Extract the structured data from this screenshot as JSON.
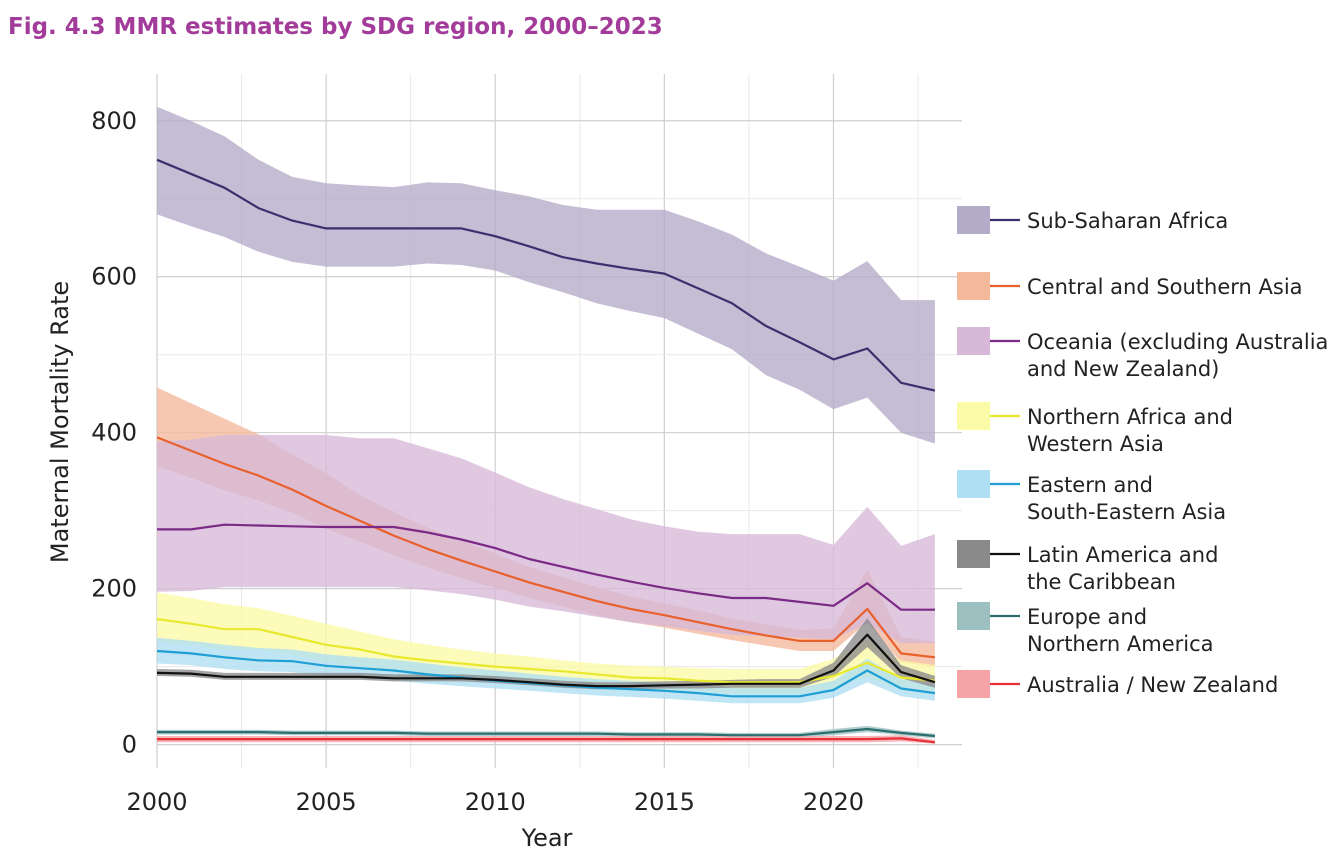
{
  "figure_title": "Fig. 4.3 MMR estimates by SDG region, 2000–2023",
  "chart_data": {
    "type": "line",
    "title": "Fig. 4.3 MMR estimates by SDG region, 2000–2023",
    "xlabel": "Year",
    "ylabel": "Maternal Mortality Rate",
    "xlim": [
      2000,
      2023.8
    ],
    "ylim": [
      -30,
      860
    ],
    "x_ticks": [
      2000,
      2005,
      2010,
      2015,
      2020
    ],
    "y_ticks": [
      0,
      200,
      400,
      600,
      800
    ],
    "grid": true,
    "legend_position": "right",
    "x": [
      2000,
      2001,
      2002,
      2003,
      2004,
      2005,
      2006,
      2007,
      2008,
      2009,
      2010,
      2011,
      2012,
      2013,
      2014,
      2015,
      2016,
      2017,
      2018,
      2019,
      2020,
      2021,
      2022,
      2023
    ],
    "series": [
      {
        "name": "Sub-Saharan Africa",
        "label_lines": [
          "Sub-Saharan Africa"
        ],
        "line_color": "#3c2f6e",
        "band_color": "#b4abc8",
        "values": [
          750,
          732,
          714,
          688,
          672,
          662,
          662,
          662,
          662,
          662,
          652,
          639,
          625,
          617,
          610,
          604,
          585,
          566,
          537,
          516,
          494,
          508,
          464,
          454
        ],
        "lower": [
          680,
          665,
          651,
          632,
          619,
          613,
          613,
          613,
          617,
          615,
          608,
          593,
          580,
          566,
          556,
          547,
          527,
          507,
          474,
          455,
          430,
          445,
          400,
          386
        ],
        "upper": [
          818,
          800,
          780,
          750,
          728,
          720,
          717,
          715,
          721,
          720,
          711,
          703,
          692,
          686,
          686,
          686,
          671,
          654,
          630,
          613,
          595,
          620,
          570,
          570
        ]
      },
      {
        "name": "Central and Southern Asia",
        "label_lines": [
          "Central and Southern Asia"
        ],
        "line_color": "#e8602c",
        "band_color": "#f4b89b",
        "values": [
          394,
          377,
          360,
          345,
          327,
          306,
          287,
          268,
          251,
          236,
          222,
          208,
          196,
          184,
          174,
          166,
          157,
          148,
          140,
          133,
          133,
          174,
          117,
          112
        ],
        "lower": [
          357,
          342,
          326,
          313,
          297,
          277,
          260,
          243,
          227,
          213,
          201,
          188,
          177,
          166,
          157,
          150,
          142,
          134,
          127,
          120,
          120,
          157,
          105,
          100
        ],
        "upper": [
          458,
          438,
          418,
          398,
          372,
          348,
          320,
          298,
          278,
          262,
          245,
          228,
          215,
          202,
          190,
          181,
          172,
          162,
          154,
          147,
          149,
          225,
          138,
          132
        ]
      },
      {
        "name": "Oceania (excluding Australia and New Zealand)",
        "label_lines": [
          "Oceania (excluding Australia",
          " and New Zealand)"
        ],
        "line_color": "#7b2a86",
        "band_color": "#d7b8d8",
        "values": [
          276,
          276,
          282,
          281,
          280,
          279,
          279,
          279,
          272,
          263,
          252,
          238,
          228,
          218,
          209,
          201,
          194,
          188,
          188,
          183,
          178,
          207,
          173,
          173
        ],
        "lower": [
          196,
          197,
          202,
          202,
          202,
          202,
          202,
          202,
          198,
          193,
          186,
          177,
          171,
          164,
          157,
          152,
          146,
          141,
          139,
          137,
          135,
          155,
          130,
          130
        ],
        "upper": [
          389,
          391,
          397,
          397,
          397,
          397,
          393,
          393,
          380,
          367,
          349,
          330,
          315,
          302,
          289,
          280,
          273,
          270,
          270,
          270,
          256,
          305,
          255,
          270
        ]
      },
      {
        "name": "Northern Africa and Western Asia",
        "label_lines": [
          "Northern Africa and",
          "Western Asia"
        ],
        "line_color": "#e8e82e",
        "band_color": "#fbfaa6",
        "values": [
          161,
          155,
          148,
          148,
          138,
          128,
          122,
          113,
          108,
          104,
          100,
          97,
          94,
          90,
          86,
          85,
          82,
          80,
          80,
          80,
          88,
          105,
          86,
          82
        ],
        "lower": [
          132,
          128,
          122,
          122,
          115,
          106,
          101,
          94,
          89,
          86,
          83,
          80,
          77,
          74,
          71,
          70,
          68,
          66,
          66,
          66,
          72,
          86,
          70,
          67
        ],
        "upper": [
          195,
          188,
          180,
          175,
          165,
          155,
          145,
          135,
          128,
          122,
          117,
          113,
          108,
          104,
          101,
          100,
          98,
          97,
          97,
          97,
          110,
          135,
          108,
          102
        ]
      },
      {
        "name": "Eastern and South-Eastern Asia",
        "label_lines": [
          "Eastern and",
          "South-Eastern Asia"
        ],
        "line_color": "#1f9fd4",
        "band_color": "#aedff3",
        "values": [
          120,
          117,
          112,
          108,
          107,
          101,
          98,
          95,
          90,
          86,
          82,
          79,
          76,
          73,
          71,
          69,
          66,
          62,
          62,
          62,
          70,
          95,
          72,
          66
        ],
        "lower": [
          104,
          102,
          97,
          94,
          93,
          88,
          85,
          82,
          78,
          75,
          72,
          69,
          66,
          63,
          61,
          59,
          56,
          53,
          53,
          53,
          60,
          80,
          62,
          56
        ],
        "upper": [
          137,
          133,
          128,
          124,
          122,
          116,
          112,
          109,
          104,
          99,
          95,
          91,
          87,
          84,
          82,
          80,
          77,
          73,
          73,
          73,
          82,
          110,
          84,
          77
        ]
      },
      {
        "name": "Latin America and the Caribbean",
        "label_lines": [
          "Latin America and",
          "the Caribbean"
        ],
        "line_color": "#111111",
        "band_color": "#8a8a8a",
        "values": [
          92,
          91,
          87,
          87,
          87,
          87,
          87,
          85,
          85,
          85,
          83,
          80,
          77,
          75,
          75,
          76,
          77,
          78,
          78,
          78,
          95,
          141,
          93,
          80
        ],
        "lower": [
          88,
          87,
          83,
          83,
          83,
          83,
          83,
          81,
          81,
          81,
          79,
          76,
          73,
          71,
          71,
          72,
          72,
          73,
          73,
          73,
          87,
          125,
          85,
          73
        ],
        "upper": [
          97,
          96,
          92,
          92,
          92,
          92,
          92,
          90,
          90,
          90,
          88,
          85,
          82,
          80,
          80,
          81,
          82,
          83,
          84,
          84,
          105,
          162,
          102,
          88
        ]
      },
      {
        "name": "Europe and Northern America",
        "label_lines": [
          "Europe and",
          "Northern America"
        ],
        "line_color": "#2b6e6e",
        "band_color": "#9cc0c0",
        "values": [
          16,
          16,
          16,
          16,
          15,
          15,
          15,
          15,
          14,
          14,
          14,
          14,
          14,
          14,
          13,
          13,
          13,
          12,
          12,
          12,
          16,
          20,
          15,
          11
        ],
        "lower": [
          13,
          13,
          13,
          13,
          12,
          12,
          12,
          12,
          11,
          11,
          11,
          11,
          11,
          11,
          10,
          10,
          10,
          9,
          9,
          9,
          12,
          16,
          12,
          8
        ],
        "upper": [
          19,
          19,
          19,
          19,
          18,
          18,
          18,
          18,
          17,
          17,
          17,
          17,
          17,
          17,
          16,
          16,
          16,
          15,
          15,
          15,
          20,
          24,
          18,
          14
        ]
      },
      {
        "name": "Australia / New Zealand",
        "label_lines": [
          "Australia / New Zealand"
        ],
        "line_color": "#e8303a",
        "band_color": "#f5a3a6",
        "values": [
          7,
          7,
          7,
          7,
          7,
          7,
          7,
          7,
          7,
          7,
          7,
          7,
          7,
          7,
          7,
          7,
          7,
          7,
          7,
          7,
          7,
          7,
          8,
          3
        ],
        "lower": [
          3,
          3,
          3,
          3,
          3,
          3,
          3,
          3,
          3,
          3,
          3,
          3,
          3,
          3,
          3,
          3,
          3,
          3,
          3,
          3,
          3,
          3,
          4,
          1
        ],
        "upper": [
          11,
          11,
          11,
          11,
          11,
          11,
          11,
          11,
          11,
          11,
          11,
          11,
          11,
          11,
          11,
          11,
          11,
          11,
          11,
          11,
          11,
          11,
          12,
          6
        ]
      }
    ]
  }
}
